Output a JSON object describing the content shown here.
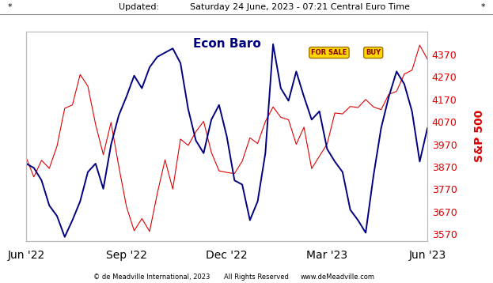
{
  "chart_data": {
    "type": "line",
    "title": "Econ Baro",
    "header": {
      "left": "*",
      "label": "Updated:",
      "timestamp": "Saturday 24 June, 2023 - 07:21 Central Euro Time",
      "right": "*"
    },
    "footer": {
      "left": "© de Meadville International, 2023",
      "middle": "All Rights Reserved",
      "right": "www.deMeadville.com"
    },
    "annotations": [
      "FOR SALE",
      "BUY"
    ],
    "y2_label": "S&P 500",
    "categories": [
      "Jun '22",
      null,
      null,
      null,
      null,
      null,
      null,
      null,
      null,
      null,
      null,
      null,
      null,
      "Sep '22",
      null,
      null,
      null,
      null,
      null,
      null,
      null,
      null,
      null,
      null,
      null,
      null,
      "Dec '22",
      null,
      null,
      null,
      null,
      null,
      null,
      null,
      null,
      null,
      null,
      null,
      null,
      "Mar '23",
      null,
      null,
      null,
      null,
      null,
      null,
      null,
      null,
      null,
      null,
      null,
      null,
      "Jun '23"
    ],
    "ylim": [
      0,
      100
    ],
    "yticks": [],
    "y2lim": [
      3540,
      4470
    ],
    "y2ticks": [
      3570,
      3670,
      3770,
      3870,
      3970,
      4070,
      4170,
      4270,
      4370
    ],
    "grid": false,
    "series": [
      {
        "name": "Econ Baro",
        "color": "#000080",
        "axis": "y",
        "values": [
          37,
          35,
          29,
          17,
          12,
          2,
          10,
          19,
          33,
          37,
          25,
          46,
          60,
          69,
          79,
          73,
          83,
          88,
          90,
          92,
          85,
          63,
          48,
          42,
          58,
          65,
          50,
          29,
          27,
          10,
          19,
          42,
          94,
          73,
          67,
          81,
          69,
          58,
          62,
          44,
          38,
          33,
          15,
          10,
          4,
          31,
          54,
          69,
          81,
          75,
          62,
          38,
          54
        ]
      },
      {
        "name": "S&P 500",
        "color": "#e00000",
        "axis": "y2",
        "values": [
          3911,
          3825,
          3899,
          3863,
          3962,
          4130,
          4145,
          4280,
          4228,
          4058,
          3924,
          4067,
          3873,
          3693,
          3586,
          3640,
          3583,
          3752,
          3901,
          3771,
          3993,
          3965,
          4026,
          4072,
          3934,
          3852,
          3845,
          3840,
          3895,
          3999,
          3973,
          4071,
          4136,
          4090,
          4079,
          3970,
          4046,
          3862,
          3917,
          3971,
          4109,
          4105,
          4138,
          4133,
          4169,
          4136,
          4124,
          4192,
          4205,
          4282,
          4299,
          4410,
          4348
        ]
      }
    ]
  }
}
